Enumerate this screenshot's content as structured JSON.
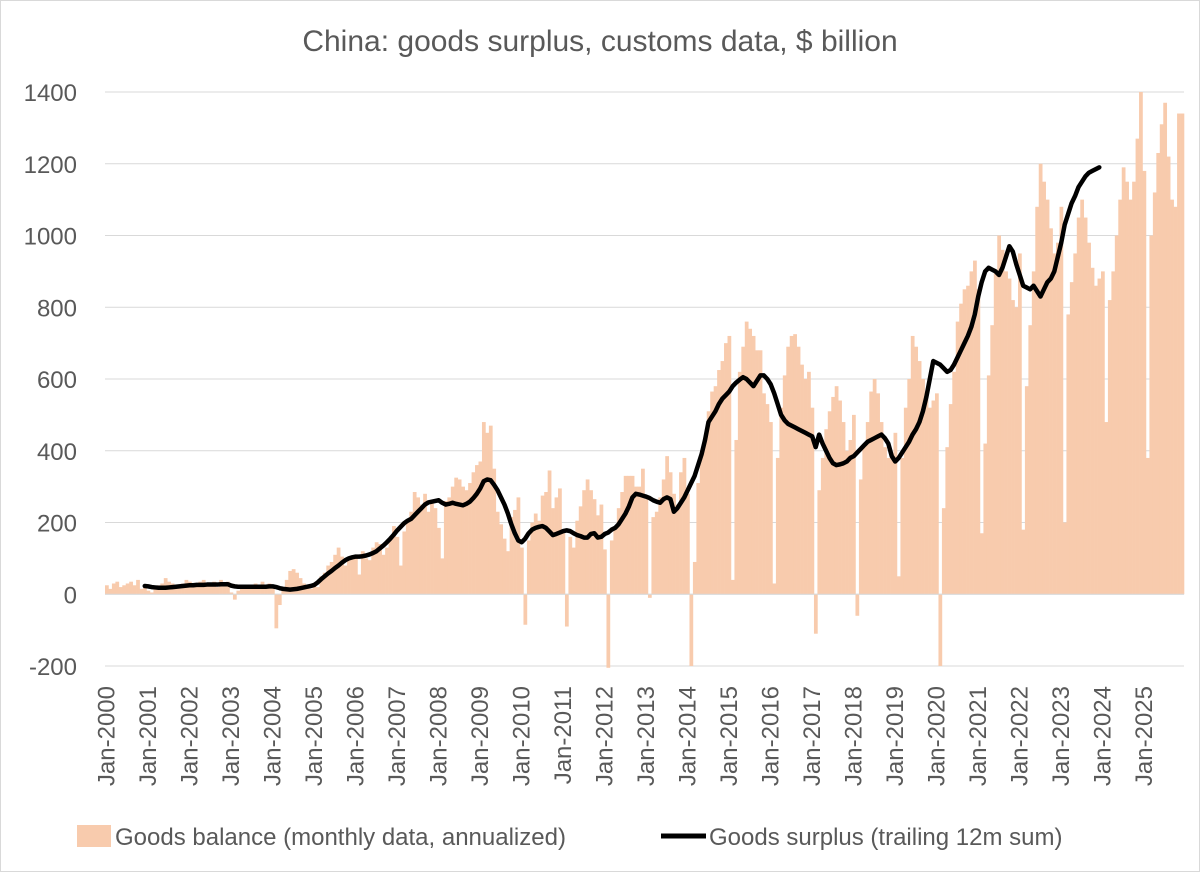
{
  "chart_data": {
    "type": "bar",
    "title": "China: goods surplus, customs data, $ billion",
    "xlabel": "",
    "ylabel": "",
    "ylim": [
      -200,
      1400
    ],
    "y_ticks": [
      "-200",
      "0",
      "200",
      "400",
      "600",
      "800",
      "1000",
      "1200",
      "1400"
    ],
    "x_tick_labels": [
      "Jan-2000",
      "Jan-2001",
      "Jan-2002",
      "Jan-2003",
      "Jan-2004",
      "Jan-2005",
      "Jan-2006",
      "Jan-2007",
      "Jan-2008",
      "Jan-2009",
      "Jan-2010",
      "Jan-2011",
      "Jan-2012",
      "Jan-2013",
      "Jan-2014",
      "Jan-2015",
      "Jan-2016",
      "Jan-2017",
      "Jan-2018",
      "Jan-2019",
      "Jan-2020",
      "Jan-2021",
      "Jan-2022",
      "Jan-2023",
      "Jan-2024",
      "Jan-2025"
    ],
    "grid": true,
    "legend_position": "bottom",
    "colors": {
      "bars": "#f8cbad",
      "line": "#000000",
      "grid": "#d9d9d9",
      "text": "#595959"
    },
    "series": [
      {
        "name": "Goods balance (monthly data, annualized)",
        "type": "bar",
        "start": "2000-01",
        "values": [
          25,
          15,
          30,
          35,
          20,
          25,
          30,
          35,
          25,
          40,
          15,
          20,
          10,
          5,
          20,
          25,
          30,
          45,
          35,
          30,
          20,
          25,
          30,
          40,
          35,
          25,
          30,
          35,
          40,
          30,
          25,
          35,
          20,
          40,
          30,
          35,
          5,
          -15,
          10,
          15,
          20,
          25,
          25,
          30,
          20,
          35,
          25,
          30,
          20,
          -95,
          -30,
          15,
          40,
          65,
          70,
          60,
          45,
          30,
          20,
          15,
          30,
          20,
          50,
          60,
          80,
          90,
          110,
          130,
          105,
          80,
          95,
          100,
          110,
          55,
          120,
          100,
          95,
          130,
          145,
          140,
          110,
          130,
          150,
          190,
          160,
          80,
          175,
          200,
          230,
          285,
          270,
          250,
          280,
          230,
          260,
          240,
          185,
          100,
          260,
          270,
          300,
          325,
          320,
          300,
          290,
          310,
          340,
          360,
          370,
          480,
          450,
          470,
          350,
          230,
          195,
          155,
          120,
          215,
          235,
          270,
          130,
          -85,
          150,
          200,
          225,
          205,
          275,
          285,
          345,
          240,
          270,
          295,
          170,
          -90,
          160,
          130,
          205,
          245,
          290,
          320,
          290,
          265,
          220,
          250,
          125,
          -205,
          150,
          180,
          240,
          285,
          330,
          330,
          330,
          300,
          300,
          350,
          265,
          -10,
          215,
          230,
          270,
          320,
          385,
          340,
          280,
          250,
          340,
          380,
          280,
          -200,
          90,
          310,
          390,
          430,
          510,
          565,
          580,
          625,
          650,
          700,
          720,
          40,
          430,
          620,
          690,
          760,
          740,
          720,
          680,
          680,
          560,
          530,
          480,
          30,
          380,
          520,
          610,
          690,
          720,
          725,
          690,
          640,
          600,
          620,
          520,
          -110,
          290,
          380,
          460,
          510,
          550,
          580,
          540,
          480,
          400,
          430,
          500,
          -60,
          320,
          410,
          480,
          565,
          600,
          560,
          480,
          410,
          380,
          390,
          450,
          50,
          380,
          520,
          600,
          720,
          690,
          650,
          600,
          560,
          520,
          540,
          560,
          -200,
          240,
          410,
          530,
          620,
          760,
          810,
          850,
          860,
          900,
          930,
          850,
          170,
          420,
          610,
          750,
          900,
          1000,
          960,
          900,
          880,
          820,
          800,
          950,
          180,
          580,
          750,
          900,
          1080,
          1200,
          1150,
          1100,
          1020,
          950,
          980,
          1080,
          200,
          780,
          870,
          950,
          1050,
          1100,
          1050,
          980,
          910,
          860,
          880,
          900,
          480,
          820,
          900,
          1000,
          1100,
          1190,
          1150,
          1100,
          1150,
          1270,
          1400,
          1180,
          380,
          1000,
          1120,
          1230,
          1310,
          1370,
          1220,
          1100,
          1080,
          1340,
          1340
        ]
      },
      {
        "name": "Goods surplus (trailing 12m sum)",
        "type": "line",
        "start": "2000-12",
        "values": [
          23,
          22,
          20,
          19,
          18,
          18,
          18,
          19,
          20,
          21,
          22,
          23,
          24,
          25,
          25,
          26,
          26,
          26,
          27,
          27,
          27,
          27,
          28,
          28,
          28,
          24,
          22,
          21,
          21,
          21,
          21,
          21,
          21,
          21,
          21,
          21,
          22,
          22,
          20,
          17,
          15,
          14,
          13,
          14,
          15,
          17,
          19,
          21,
          23,
          26,
          33,
          42,
          50,
          58,
          65,
          73,
          80,
          88,
          95,
          100,
          103,
          105,
          105,
          106,
          108,
          111,
          115,
          120,
          128,
          136,
          145,
          155,
          166,
          178,
          188,
          198,
          205,
          210,
          220,
          230,
          240,
          250,
          256,
          258,
          260,
          262,
          255,
          250,
          252,
          255,
          252,
          250,
          248,
          252,
          258,
          268,
          280,
          295,
          315,
          320,
          318,
          305,
          290,
          270,
          250,
          225,
          195,
          170,
          150,
          145,
          155,
          170,
          180,
          185,
          188,
          190,
          185,
          175,
          165,
          168,
          172,
          176,
          178,
          176,
          170,
          165,
          162,
          158,
          158,
          168,
          170,
          158,
          160,
          168,
          172,
          180,
          185,
          195,
          210,
          225,
          245,
          270,
          280,
          278,
          275,
          272,
          268,
          262,
          258,
          255,
          265,
          270,
          265,
          230,
          240,
          255,
          270,
          290,
          310,
          330,
          360,
          390,
          430,
          480,
          495,
          510,
          530,
          545,
          555,
          565,
          580,
          590,
          598,
          605,
          600,
          590,
          580,
          595,
          610,
          610,
          600,
          585,
          560,
          530,
          500,
          485,
          475,
          470,
          465,
          460,
          455,
          450,
          445,
          440,
          410,
          445,
          420,
          400,
          380,
          365,
          360,
          362,
          365,
          370,
          380,
          385,
          395,
          405,
          415,
          425,
          430,
          435,
          440,
          445,
          435,
          420,
          385,
          370,
          380,
          395,
          410,
          425,
          445,
          460,
          480,
          510,
          550,
          600,
          650,
          645,
          640,
          630,
          620,
          625,
          640,
          660,
          680,
          700,
          720,
          745,
          780,
          830,
          870,
          900,
          910,
          905,
          900,
          890,
          910,
          940,
          970,
          955,
          920,
          890,
          860,
          855,
          850,
          860,
          845,
          830,
          850,
          870,
          880,
          900,
          940,
          980,
          1030,
          1060,
          1090,
          1110,
          1135,
          1150,
          1165,
          1175,
          1180,
          1185,
          1190
        ]
      }
    ]
  }
}
